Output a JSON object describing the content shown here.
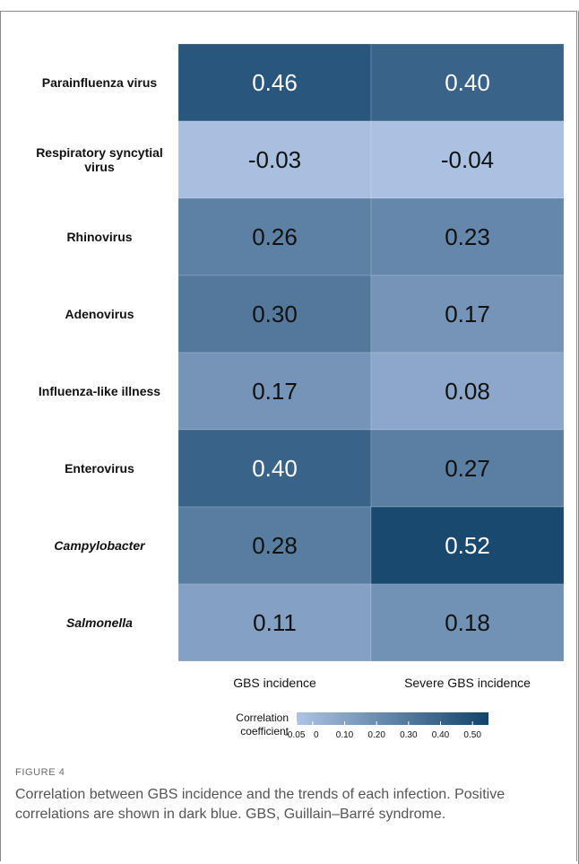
{
  "figure": {
    "label": "FIGURE 4",
    "caption": "Correlation between GBS incidence and the trends of each infection. Positive correlations are shown in dark blue. GBS, Guillain–Barré syndrome."
  },
  "chart_data": {
    "type": "heatmap",
    "rows": [
      {
        "label": "Parainfluenza virus",
        "italic": false
      },
      {
        "label": "Respiratory syncytial virus",
        "italic": false
      },
      {
        "label": "Rhinovirus",
        "italic": false
      },
      {
        "label": "Adenovirus",
        "italic": false
      },
      {
        "label": "Influenza-like illness",
        "italic": false
      },
      {
        "label": "Enterovirus",
        "italic": false
      },
      {
        "label": "Campylobacter",
        "italic": true
      },
      {
        "label": "Salmonella",
        "italic": true
      }
    ],
    "columns": [
      "GBS incidence",
      "Severe GBS incidence"
    ],
    "values": [
      [
        0.46,
        0.4
      ],
      [
        -0.03,
        -0.04
      ],
      [
        0.26,
        0.23
      ],
      [
        0.3,
        0.17
      ],
      [
        0.17,
        0.08
      ],
      [
        0.4,
        0.27
      ],
      [
        0.28,
        0.52
      ],
      [
        0.11,
        0.18
      ]
    ],
    "value_labels": [
      [
        "0.46",
        "0.40"
      ],
      [
        "-0.03",
        "-0.04"
      ],
      [
        "0.26",
        "0.23"
      ],
      [
        "0.30",
        "0.17"
      ],
      [
        "0.17",
        "0.08"
      ],
      [
        "0.40",
        "0.27"
      ],
      [
        "0.28",
        "0.52"
      ],
      [
        "0.11",
        "0.18"
      ]
    ],
    "legend": {
      "title": "Correlation coefficient",
      "title_lines": [
        "Correlation",
        "coefficient"
      ],
      "ticks": [
        "-0.05",
        "0",
        "0.10",
        "0.20",
        "0.30",
        "0.40",
        "0.50"
      ],
      "tick_values": [
        -0.05,
        0,
        0.1,
        0.2,
        0.3,
        0.4,
        0.5
      ],
      "range": [
        -0.05,
        0.55
      ],
      "placement": "bottom"
    },
    "colors": {
      "low": "#aec3e3",
      "high": "#12436a",
      "light_text": "#ffffff",
      "dark_text": "#111111"
    }
  }
}
